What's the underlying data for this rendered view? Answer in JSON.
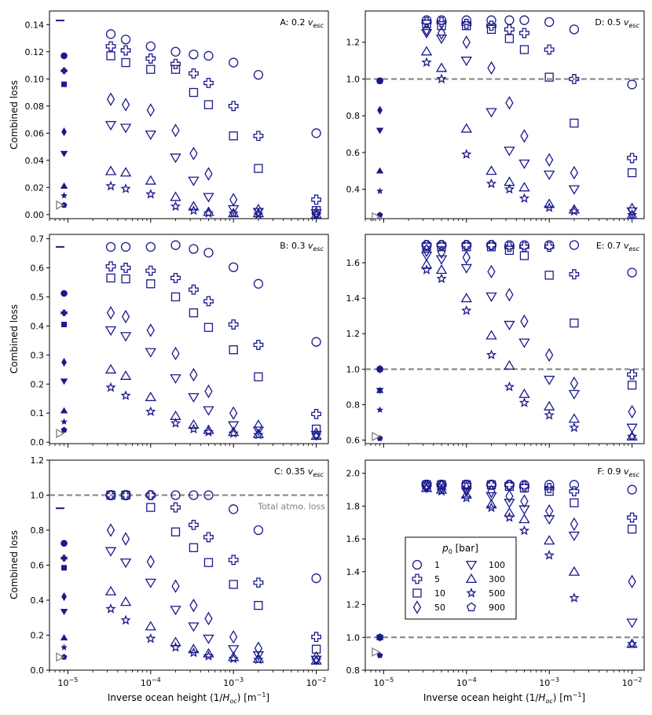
{
  "figure": {
    "xlabel": "Inverse ocean height (1/H_oc) [m^-1]",
    "ylabel": "Combined loss",
    "x_ticks": [
      1e-05,
      0.0001,
      0.001,
      0.01
    ],
    "x_tick_labels": [
      {
        "base": "10",
        "exp": "−5"
      },
      {
        "base": "10",
        "exp": "−4"
      },
      {
        "base": "10",
        "exp": "−3"
      },
      {
        "base": "10",
        "exp": "−2"
      }
    ],
    "colors": {
      "marker": "#1a1a8c",
      "reference": "#808080",
      "axis": "#000000"
    },
    "legend": {
      "title": "p_0 [bar]",
      "entries": [
        {
          "label": "1",
          "marker": "circle"
        },
        {
          "label": "100",
          "marker": "triangle-down"
        },
        {
          "label": "5",
          "marker": "plus"
        },
        {
          "label": "300",
          "marker": "triangle-up"
        },
        {
          "label": "10",
          "marker": "square"
        },
        {
          "label": "500",
          "marker": "star"
        },
        {
          "label": "50",
          "marker": "diamond"
        },
        {
          "label": "900",
          "marker": "pentagon"
        }
      ]
    },
    "total_loss_label": "Total atmo. loss"
  },
  "chart_data": [
    {
      "id": "A",
      "title": "A: 0.2 v_esc",
      "type": "scatter",
      "x": [
        3.3e-05,
        5e-05,
        0.0001,
        0.0002,
        0.00033,
        0.0005,
        0.001,
        0.002,
        0.01
      ],
      "ylim": [
        -0.003,
        0.15
      ],
      "yticks": [
        0.0,
        0.02,
        0.04,
        0.06,
        0.08,
        0.1,
        0.12,
        0.14
      ],
      "ytick_labels": [
        "0.00",
        "0.02",
        "0.04",
        "0.06",
        "0.08",
        "0.10",
        "0.12",
        "0.14"
      ],
      "series": [
        {
          "name": "1",
          "values": [
            0.133,
            0.129,
            0.124,
            0.12,
            0.118,
            0.117,
            0.112,
            0.103,
            0.06
          ]
        },
        {
          "name": "5",
          "values": [
            0.124,
            0.121,
            0.115,
            0.111,
            0.104,
            0.097,
            0.08,
            0.058,
            0.011
          ]
        },
        {
          "name": "10",
          "values": [
            0.117,
            0.112,
            0.107,
            0.107,
            0.09,
            0.081,
            0.058,
            0.034,
            0.003
          ]
        },
        {
          "name": "50",
          "values": [
            0.085,
            0.081,
            0.077,
            0.062,
            0.045,
            0.03,
            0.011,
            0.003,
            0.001
          ]
        },
        {
          "name": "100",
          "values": [
            0.066,
            0.064,
            0.059,
            0.042,
            0.025,
            0.013,
            0.004,
            0.002,
            0.001
          ]
        },
        {
          "name": "300",
          "values": [
            0.032,
            0.031,
            0.025,
            0.013,
            0.006,
            0.002,
            0.001,
            0.001,
            0.0
          ]
        },
        {
          "name": "500",
          "values": [
            0.021,
            0.019,
            0.015,
            0.006,
            0.003,
            0.001,
            0.001,
            0.0,
            0.0
          ]
        }
      ],
      "reference": {
        "no_ocean": {
          "1": 0.117,
          "5": 0.106,
          "10": 0.096,
          "50": 0.061,
          "100": 0.045,
          "300": 0.021,
          "500": 0.014,
          "900": 0.007
        },
        "dash_level": 0.143,
        "open_triangle_level": 0.007
      },
      "total_loss_line": null
    },
    {
      "id": "B",
      "title": "B: 0.3 v_esc",
      "type": "scatter",
      "x": [
        3.3e-05,
        5e-05,
        0.0001,
        0.0002,
        0.00033,
        0.0005,
        0.001,
        0.002,
        0.01
      ],
      "ylim": [
        -0.005,
        0.715
      ],
      "yticks": [
        0.0,
        0.1,
        0.2,
        0.3,
        0.4,
        0.5,
        0.6,
        0.7
      ],
      "ytick_labels": [
        "0.0",
        "0.1",
        "0.2",
        "0.3",
        "0.4",
        "0.5",
        "0.6",
        "0.7"
      ],
      "series": [
        {
          "name": "1",
          "values": [
            0.672,
            0.672,
            0.672,
            0.678,
            0.665,
            0.652,
            0.602,
            0.545,
            0.345
          ]
        },
        {
          "name": "5",
          "values": [
            0.605,
            0.6,
            0.59,
            0.565,
            0.525,
            0.485,
            0.405,
            0.335,
            0.097
          ]
        },
        {
          "name": "10",
          "values": [
            0.565,
            0.562,
            0.545,
            0.5,
            0.445,
            0.395,
            0.318,
            0.225,
            0.045
          ]
        },
        {
          "name": "50",
          "values": [
            0.445,
            0.432,
            0.385,
            0.305,
            0.232,
            0.175,
            0.1,
            0.055,
            0.028
          ]
        },
        {
          "name": "100",
          "values": [
            0.385,
            0.365,
            0.31,
            0.22,
            0.155,
            0.11,
            0.058,
            0.04,
            0.025
          ]
        },
        {
          "name": "300",
          "values": [
            0.25,
            0.228,
            0.155,
            0.09,
            0.06,
            0.042,
            0.035,
            0.028,
            0.022
          ]
        },
        {
          "name": "500",
          "values": [
            0.188,
            0.16,
            0.105,
            0.065,
            0.045,
            0.035,
            0.03,
            0.025,
            0.022
          ]
        }
      ],
      "reference": {
        "no_ocean": {
          "1": 0.512,
          "5": 0.445,
          "10": 0.405,
          "50": 0.275,
          "100": 0.21,
          "300": 0.108,
          "500": 0.07,
          "900": 0.042
        },
        "dash_level": 0.672,
        "open_triangle_level": 0.03
      },
      "total_loss_line": null
    },
    {
      "id": "C",
      "title": "C: 0.35 v_esc",
      "type": "scatter",
      "x": [
        3.3e-05,
        5e-05,
        0.0001,
        0.0002,
        0.00033,
        0.0005,
        0.001,
        0.002,
        0.01
      ],
      "ylim": [
        0.0,
        1.2
      ],
      "yticks": [
        0.0,
        0.2,
        0.4,
        0.6,
        0.8,
        1.0,
        1.2
      ],
      "ytick_labels": [
        "0.0",
        "0.2",
        "0.4",
        "0.6",
        "0.8",
        "1.0",
        "1.2"
      ],
      "series": [
        {
          "name": "1",
          "values": [
            1.0,
            1.0,
            1.0,
            1.0,
            1.0,
            1.0,
            0.92,
            0.8,
            0.525
          ]
        },
        {
          "name": "5",
          "values": [
            1.0,
            1.0,
            1.0,
            0.93,
            0.83,
            0.76,
            0.63,
            0.5,
            0.19
          ]
        },
        {
          "name": "10",
          "values": [
            1.0,
            1.0,
            0.93,
            0.79,
            0.7,
            0.615,
            0.49,
            0.37,
            0.12
          ]
        },
        {
          "name": "50",
          "values": [
            0.8,
            0.75,
            0.62,
            0.48,
            0.37,
            0.295,
            0.19,
            0.125,
            0.07
          ]
        },
        {
          "name": "100",
          "values": [
            0.68,
            0.615,
            0.5,
            0.345,
            0.25,
            0.18,
            0.12,
            0.085,
            0.06
          ]
        },
        {
          "name": "300",
          "values": [
            0.45,
            0.39,
            0.25,
            0.16,
            0.12,
            0.095,
            0.075,
            0.065,
            0.055
          ]
        },
        {
          "name": "500",
          "values": [
            0.35,
            0.285,
            0.18,
            0.13,
            0.1,
            0.08,
            0.065,
            0.06,
            0.055
          ]
        }
      ],
      "reference": {
        "no_ocean": {
          "1": 0.725,
          "5": 0.64,
          "10": 0.585,
          "50": 0.42,
          "100": 0.335,
          "300": 0.185,
          "500": 0.13,
          "900": 0.075
        },
        "dash_level": 0.925,
        "open_triangle_level": 0.075
      },
      "total_loss_line": 1.0
    },
    {
      "id": "D",
      "title": "D: 0.5 v_esc",
      "type": "scatter",
      "x": [
        3.3e-05,
        5e-05,
        0.0001,
        0.0002,
        0.00033,
        0.0005,
        0.001,
        0.002,
        0.01
      ],
      "ylim": [
        0.24,
        1.37
      ],
      "yticks": [
        0.4,
        0.6,
        0.8,
        1.0,
        1.2
      ],
      "ytick_labels": [
        "0.4",
        "0.6",
        "0.8",
        "1.0",
        "1.2"
      ],
      "series": [
        {
          "name": "1",
          "values": [
            1.32,
            1.32,
            1.32,
            1.32,
            1.32,
            1.32,
            1.31,
            1.27,
            0.97
          ]
        },
        {
          "name": "5",
          "values": [
            1.31,
            1.31,
            1.3,
            1.29,
            1.27,
            1.25,
            1.16,
            1.0,
            0.57
          ]
        },
        {
          "name": "10",
          "values": [
            1.3,
            1.29,
            1.29,
            1.27,
            1.22,
            1.16,
            1.01,
            0.76,
            0.49
          ]
        },
        {
          "name": "50",
          "values": [
            1.27,
            1.25,
            1.2,
            1.06,
            0.87,
            0.69,
            0.56,
            0.49,
            0.29
          ]
        },
        {
          "name": "100",
          "values": [
            1.25,
            1.22,
            1.1,
            0.82,
            0.61,
            0.54,
            0.48,
            0.4,
            0.28
          ]
        },
        {
          "name": "300",
          "values": [
            1.15,
            1.06,
            0.73,
            0.5,
            0.44,
            0.41,
            0.32,
            0.29,
            0.26
          ]
        },
        {
          "name": "500",
          "values": [
            1.09,
            1.0,
            0.59,
            0.43,
            0.4,
            0.35,
            0.3,
            0.28,
            0.26
          ]
        }
      ],
      "reference": {
        "no_ocean": {
          "1": 0.99,
          "5": 0.99,
          "10": 0.99,
          "50": 0.83,
          "100": 0.72,
          "300": 0.5,
          "500": 0.39,
          "900": 0.26
        },
        "dash_level": null,
        "open_triangle_level": 0.25
      },
      "total_loss_line": 1.0
    },
    {
      "id": "E",
      "title": "E: 0.7 v_esc",
      "type": "scatter",
      "x": [
        3.3e-05,
        5e-05,
        0.0001,
        0.0002,
        0.00033,
        0.0005,
        0.001,
        0.002,
        0.01
      ],
      "ylim": [
        0.58,
        1.76
      ],
      "yticks": [
        0.6,
        0.8,
        1.0,
        1.2,
        1.4,
        1.6
      ],
      "ytick_labels": [
        "0.6",
        "0.8",
        "1.0",
        "1.2",
        "1.4",
        "1.6"
      ],
      "series": [
        {
          "name": "1",
          "values": [
            1.7,
            1.7,
            1.7,
            1.7,
            1.7,
            1.7,
            1.7,
            1.7,
            1.545
          ]
        },
        {
          "name": "5",
          "values": [
            1.7,
            1.7,
            1.7,
            1.7,
            1.69,
            1.69,
            1.69,
            1.535,
            0.97
          ]
        },
        {
          "name": "10",
          "values": [
            1.69,
            1.69,
            1.69,
            1.69,
            1.67,
            1.64,
            1.53,
            1.26,
            0.91
          ]
        },
        {
          "name": "50",
          "values": [
            1.67,
            1.66,
            1.63,
            1.55,
            1.42,
            1.27,
            1.08,
            0.92,
            0.76
          ]
        },
        {
          "name": "100",
          "values": [
            1.64,
            1.62,
            1.57,
            1.41,
            1.25,
            1.15,
            0.94,
            0.86,
            0.67
          ]
        },
        {
          "name": "300",
          "values": [
            1.59,
            1.56,
            1.4,
            1.19,
            1.02,
            0.86,
            0.79,
            0.72,
            0.62
          ]
        },
        {
          "name": "500",
          "values": [
            1.56,
            1.51,
            1.33,
            1.08,
            0.9,
            0.81,
            0.74,
            0.67,
            0.62
          ]
        }
      ],
      "reference": {
        "no_ocean": {
          "1": 1.0,
          "5": 1.0,
          "10": 1.0,
          "50": 1.0,
          "100": 0.88,
          "300": 0.88,
          "500": 0.77,
          "900": 0.61
        },
        "dash_level": null,
        "open_triangle_level": 0.62
      },
      "total_loss_line": 1.0
    },
    {
      "id": "F",
      "title": "F: 0.9 v_esc",
      "type": "scatter",
      "x": [
        3.3e-05,
        5e-05,
        0.0001,
        0.0002,
        0.00033,
        0.0005,
        0.001,
        0.002,
        0.01
      ],
      "ylim": [
        0.8,
        2.08
      ],
      "yticks": [
        0.8,
        1.0,
        1.2,
        1.4,
        1.6,
        1.8,
        2.0
      ],
      "ytick_labels": [
        "0.8",
        "1.0",
        "1.2",
        "1.4",
        "1.6",
        "1.8",
        "2.0"
      ],
      "series": [
        {
          "name": "1",
          "values": [
            1.93,
            1.93,
            1.93,
            1.93,
            1.93,
            1.93,
            1.93,
            1.93,
            1.9
          ]
        },
        {
          "name": "5",
          "values": [
            1.93,
            1.93,
            1.93,
            1.93,
            1.93,
            1.92,
            1.91,
            1.89,
            1.73
          ]
        },
        {
          "name": "10",
          "values": [
            1.93,
            1.93,
            1.93,
            1.93,
            1.92,
            1.91,
            1.89,
            1.82,
            1.66
          ]
        },
        {
          "name": "50",
          "values": [
            1.92,
            1.92,
            1.91,
            1.89,
            1.86,
            1.83,
            1.77,
            1.69,
            1.34
          ]
        },
        {
          "name": "100",
          "values": [
            1.92,
            1.91,
            1.89,
            1.86,
            1.82,
            1.78,
            1.72,
            1.62,
            1.09
          ]
        },
        {
          "name": "300",
          "values": [
            1.91,
            1.9,
            1.87,
            1.81,
            1.76,
            1.72,
            1.59,
            1.4,
            0.96
          ]
        },
        {
          "name": "500",
          "values": [
            1.91,
            1.89,
            1.85,
            1.79,
            1.73,
            1.65,
            1.5,
            1.24,
            0.96
          ]
        }
      ],
      "reference": {
        "no_ocean": {
          "1": 1.0,
          "5": 1.0,
          "10": 1.0,
          "50": 1.0,
          "100": 1.0,
          "300": 1.0,
          "500": 1.0,
          "900": 0.89
        },
        "dash_level": null,
        "open_triangle_level": 0.91
      },
      "total_loss_line": 1.0
    }
  ]
}
